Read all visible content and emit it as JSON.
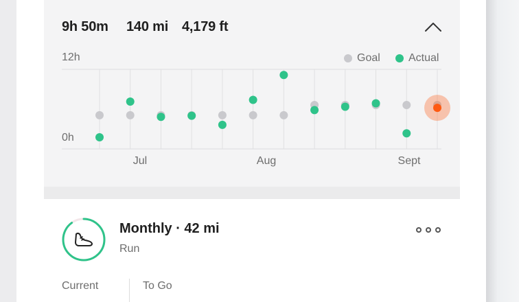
{
  "summary": {
    "duration": "9h 50m",
    "distance": "140 mi",
    "elevation": "4,179 ft"
  },
  "chart_data": {
    "type": "scatter",
    "y_ticks": [
      "12h",
      "0h"
    ],
    "x_ticks": [
      "Jul",
      "Aug",
      "Sept"
    ],
    "legend": [
      {
        "label": "Goal",
        "color": "#c9c9cd"
      },
      {
        "label": "Actual",
        "color": "#2fc38a"
      }
    ],
    "ylim": [
      0,
      12
    ],
    "series": [
      {
        "name": "Goal",
        "values": [
          3.9,
          3.9,
          3.9,
          3.9,
          3.9,
          3.9,
          3.9,
          5.7,
          5.7,
          5.7,
          5.7,
          5.7
        ]
      },
      {
        "name": "Actual",
        "values": [
          0.0,
          6.3,
          3.6,
          3.8,
          2.2,
          6.6,
          11.0,
          4.8,
          5.4,
          6.0,
          0.7,
          5.2
        ]
      }
    ],
    "highlight": {
      "index": 11,
      "color": "#fe5a12"
    }
  },
  "activity": {
    "title": "Monthly · 42 mi",
    "type": "Run",
    "icon": "shoe-icon",
    "progress": 0.9
  },
  "stats": {
    "current_label": "Current",
    "togo_label": "To Go"
  },
  "colors": {
    "accent": "#2fc38a",
    "highlight": "#fe5a12",
    "goal": "#c9c9cd"
  }
}
